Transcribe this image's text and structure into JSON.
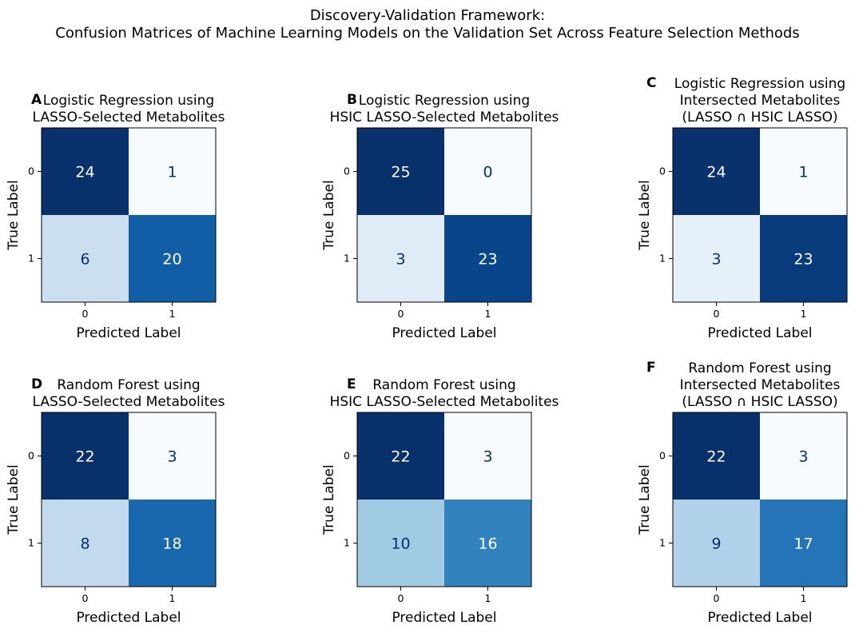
{
  "figure": {
    "title_line1": "Discovery-Validation Framework:",
    "title_line2": "Confusion Matrices of Machine Learning Models on the Validation Set Across Feature Selection Methods"
  },
  "chart_data": [
    {
      "type": "heatmap",
      "letter": "A",
      "title_lines": [
        "Logistic Regression using",
        "LASSO-Selected Metabolites"
      ],
      "xlabel": "Predicted Label",
      "ylabel": "True Label",
      "x_ticks": [
        "0",
        "1"
      ],
      "y_ticks": [
        "0",
        "1"
      ],
      "matrix": [
        [
          24,
          1
        ],
        [
          6,
          20
        ]
      ],
      "colormap": "Blues"
    },
    {
      "type": "heatmap",
      "letter": "B",
      "title_lines": [
        "Logistic Regression using",
        "HSIC LASSO-Selected Metabolites"
      ],
      "xlabel": "Predicted Label",
      "ylabel": "True Label",
      "x_ticks": [
        "0",
        "1"
      ],
      "y_ticks": [
        "0",
        "1"
      ],
      "matrix": [
        [
          25,
          0
        ],
        [
          3,
          23
        ]
      ],
      "colormap": "Blues"
    },
    {
      "type": "heatmap",
      "letter": "C",
      "title_lines": [
        "Logistic Regression using",
        "Intersected Metabolites",
        "(LASSO ∩ HSIC LASSO)"
      ],
      "xlabel": "Predicted Label",
      "ylabel": "True Label",
      "x_ticks": [
        "0",
        "1"
      ],
      "y_ticks": [
        "0",
        "1"
      ],
      "matrix": [
        [
          24,
          1
        ],
        [
          3,
          23
        ]
      ],
      "colormap": "Blues"
    },
    {
      "type": "heatmap",
      "letter": "D",
      "title_lines": [
        "Random Forest using",
        "LASSO-Selected Metabolites"
      ],
      "xlabel": "Predicted Label",
      "ylabel": "True Label",
      "x_ticks": [
        "0",
        "1"
      ],
      "y_ticks": [
        "0",
        "1"
      ],
      "matrix": [
        [
          22,
          3
        ],
        [
          8,
          18
        ]
      ],
      "colormap": "Blues"
    },
    {
      "type": "heatmap",
      "letter": "E",
      "title_lines": [
        "Random Forest using",
        "HSIC LASSO-Selected Metabolites"
      ],
      "xlabel": "Predicted Label",
      "ylabel": "True Label",
      "x_ticks": [
        "0",
        "1"
      ],
      "y_ticks": [
        "0",
        "1"
      ],
      "matrix": [
        [
          22,
          3
        ],
        [
          10,
          16
        ]
      ],
      "colormap": "Blues"
    },
    {
      "type": "heatmap",
      "letter": "F",
      "title_lines": [
        "Random Forest using",
        "Intersected Metabolites",
        "(LASSO ∩ HSIC LASSO)"
      ],
      "xlabel": "Predicted Label",
      "ylabel": "True Label",
      "x_ticks": [
        "0",
        "1"
      ],
      "y_ticks": [
        "0",
        "1"
      ],
      "matrix": [
        [
          22,
          3
        ],
        [
          9,
          17
        ]
      ],
      "colormap": "Blues"
    }
  ]
}
